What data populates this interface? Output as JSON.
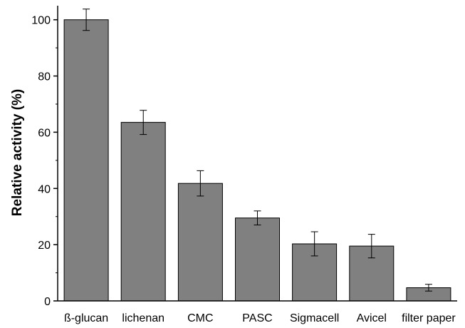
{
  "chart_data": {
    "type": "bar",
    "title": "",
    "xlabel": "",
    "ylabel": "Relative activity (%)",
    "categories": [
      "ß-glucan",
      "lichenan",
      "CMC",
      "PASC",
      "Sigmacell",
      "Avicel",
      "filter paper"
    ],
    "values": [
      100,
      63.5,
      41.8,
      29.5,
      20.3,
      19.5,
      4.7
    ],
    "errors": [
      3.8,
      4.3,
      4.5,
      2.5,
      4.3,
      4.2,
      1.2
    ],
    "ylim": [
      0,
      105
    ],
    "yticks": [
      0,
      20,
      40,
      60,
      80,
      100
    ],
    "grid": false,
    "legend": "none",
    "colors": {
      "bar_fill": "#808080",
      "bar_stroke": "#000000",
      "axis": "#000000"
    }
  }
}
